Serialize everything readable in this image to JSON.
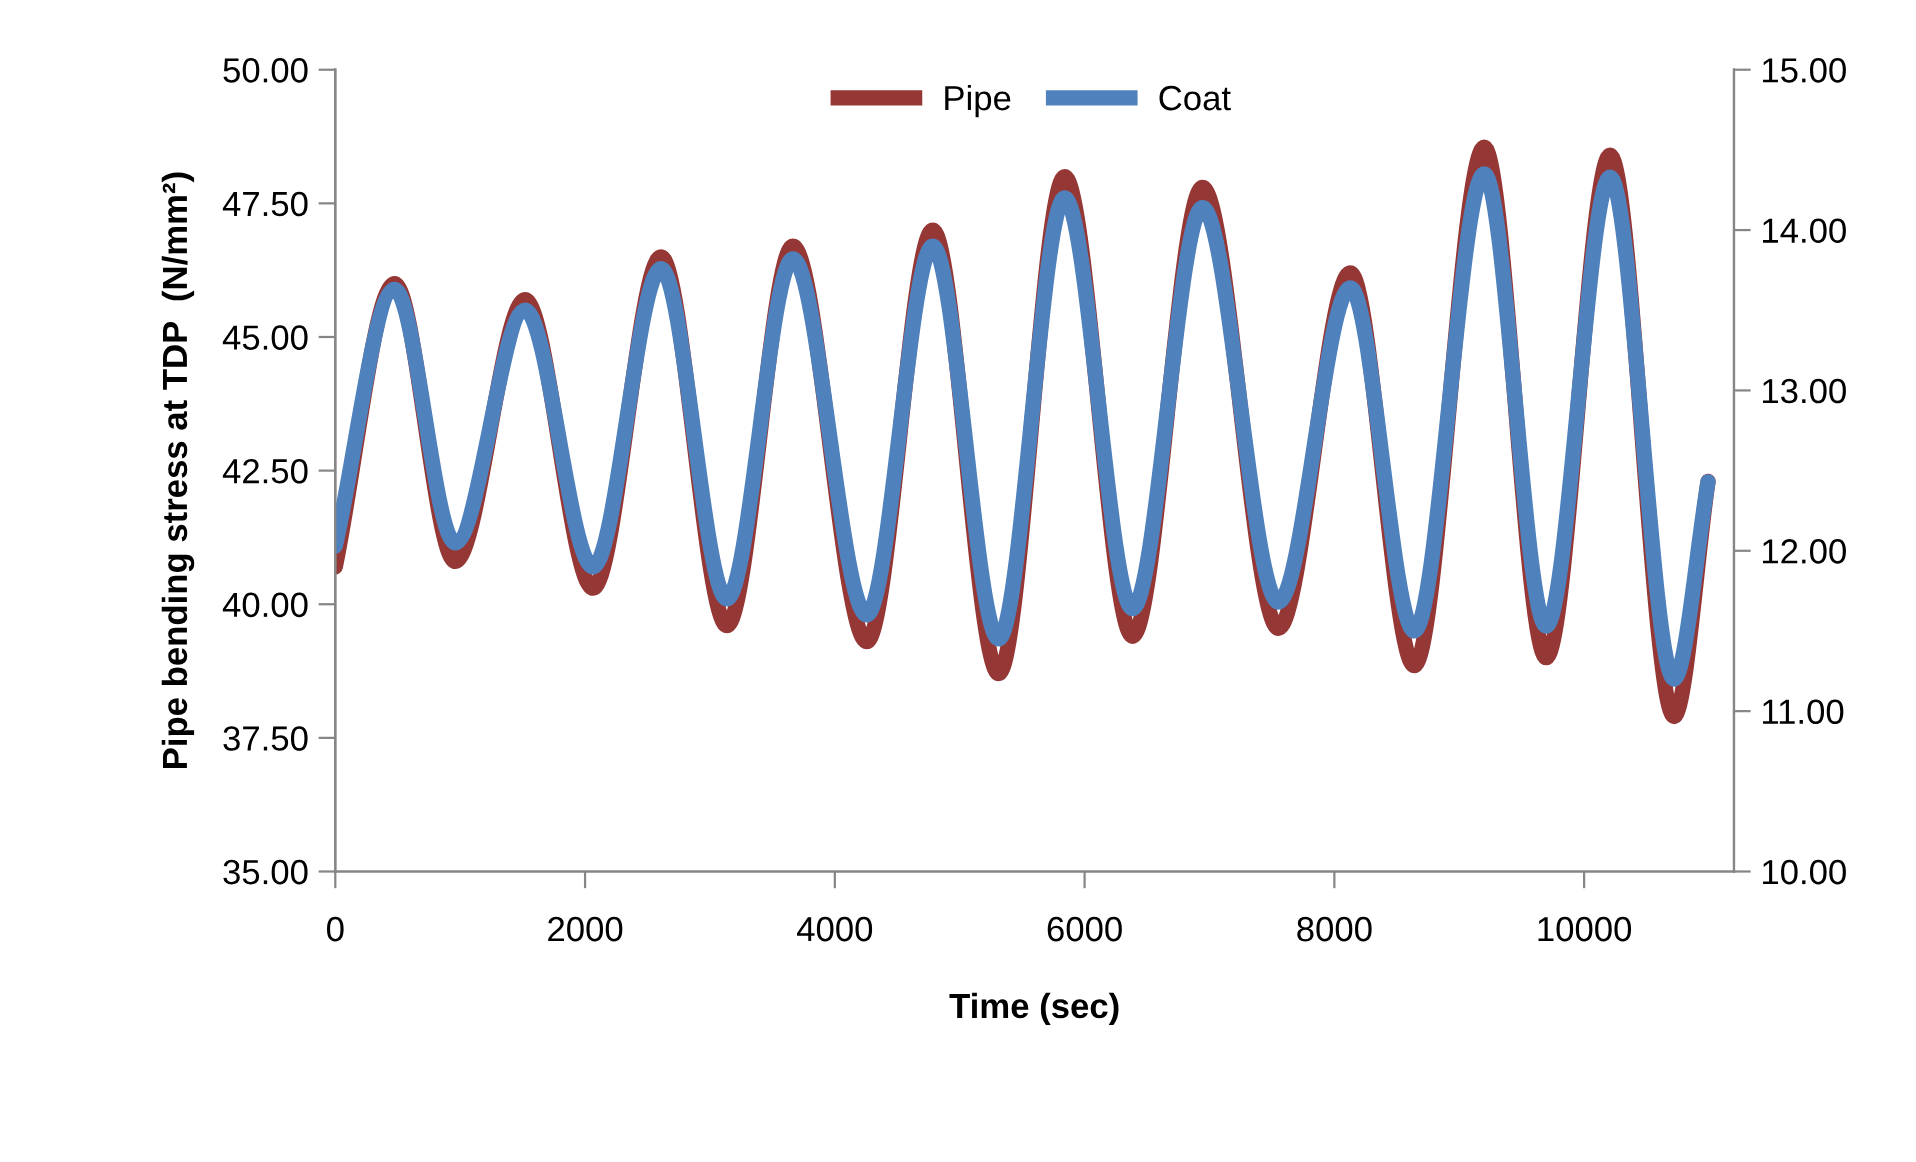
{
  "chart_data": {
    "type": "line",
    "xlabel": "Time (sec)",
    "ylabel": "Pipe bending stress at TDP  (N/mm²)",
    "xlim": [
      0,
      11200
    ],
    "xticks": [
      0,
      2000,
      4000,
      6000,
      8000,
      10000
    ],
    "ylim": [
      35,
      50
    ],
    "yticks": [
      {
        "value": 35,
        "label": "35.00"
      },
      {
        "value": 37.5,
        "label": "37.50"
      },
      {
        "value": 40,
        "label": "40.00"
      },
      {
        "value": 42.5,
        "label": "42.50"
      },
      {
        "value": 45,
        "label": "45.00"
      },
      {
        "value": 47.5,
        "label": "47.50"
      },
      {
        "value": 50,
        "label": "50.00"
      }
    ],
    "y2lim": [
      10,
      15
    ],
    "y2ticks": [
      {
        "value": 10,
        "label": "10.00"
      },
      {
        "value": 11,
        "label": "11.00"
      },
      {
        "value": 12,
        "label": "12.00"
      },
      {
        "value": 13,
        "label": "13.00"
      },
      {
        "value": 14,
        "label": "14.00"
      },
      {
        "value": 15,
        "label": "15.00"
      }
    ],
    "grid": false,
    "legend": "top",
    "marker": "none",
    "line_style": "solid",
    "series": [
      {
        "name": "Pipe",
        "color": "#953735",
        "x": [
          0,
          475,
          960,
          1520,
          2064,
          2608,
          3136,
          3664,
          4256,
          4784,
          5312,
          5840,
          6384,
          6944,
          7552,
          8128,
          8640,
          9200,
          9696,
          10208,
          10720,
          10992
        ],
        "values": [
          40.7,
          46.0,
          40.8,
          45.7,
          40.3,
          46.5,
          39.6,
          46.7,
          39.3,
          47.0,
          38.7,
          48.0,
          39.4,
          47.8,
          39.55,
          46.2,
          38.85,
          48.55,
          39.0,
          48.4,
          37.9,
          42.3
        ]
      },
      {
        "name": "Coat",
        "color": "#4f81bd",
        "axis": "y2",
        "x": [
          0,
          475,
          960,
          1520,
          2064,
          2608,
          3136,
          3664,
          4256,
          4784,
          5312,
          5840,
          6384,
          6944,
          7552,
          8128,
          8640,
          9200,
          9696,
          10208,
          10720,
          10992
        ],
        "values": [
          12.03,
          13.63,
          12.05,
          13.5,
          11.9,
          13.76,
          11.7,
          13.82,
          11.6,
          13.9,
          11.45,
          14.2,
          11.64,
          14.14,
          11.68,
          13.64,
          11.5,
          14.35,
          11.53,
          14.33,
          11.2,
          12.43
        ]
      }
    ]
  }
}
